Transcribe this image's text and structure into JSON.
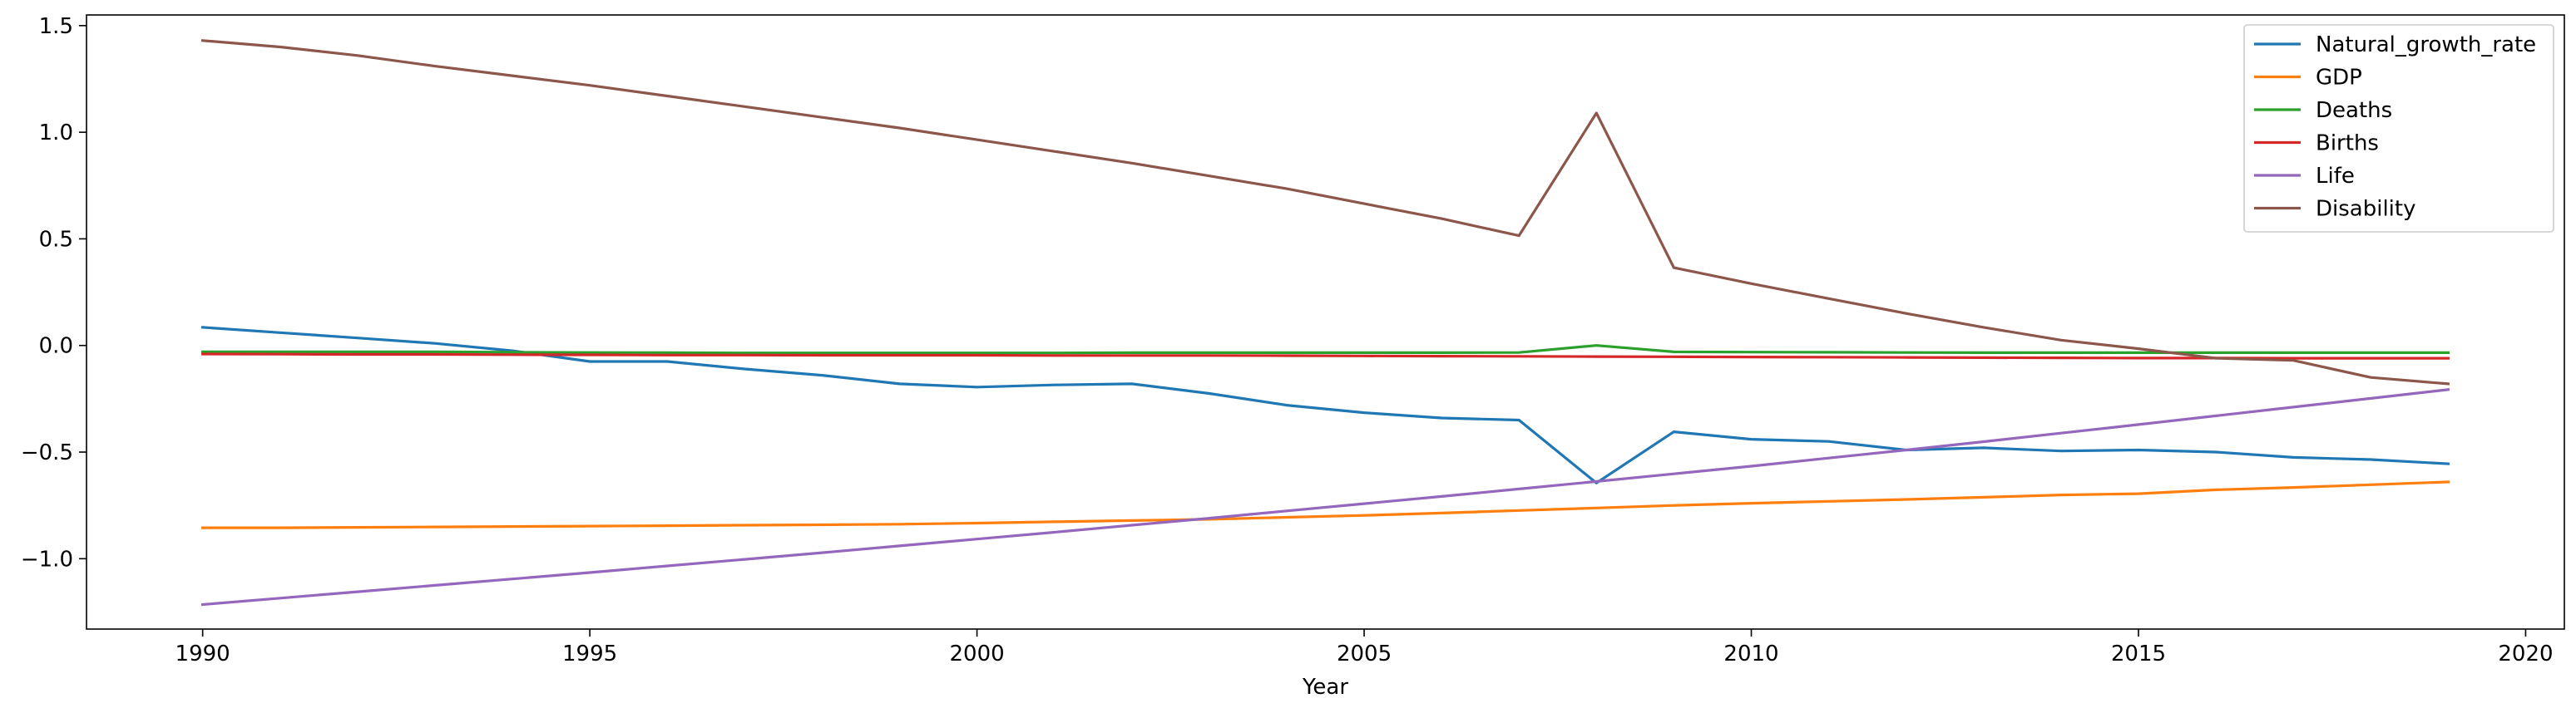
{
  "chart_data": {
    "type": "line",
    "xlabel": "Year",
    "ylabel": "",
    "xlim": [
      1988.5,
      2020.5
    ],
    "ylim": [
      -1.33,
      1.55
    ],
    "xticks": [
      1990,
      1995,
      2000,
      2005,
      2010,
      2015,
      2020
    ],
    "yticks": [
      -1.0,
      -0.5,
      0.0,
      0.5,
      1.0,
      1.5
    ],
    "ytick_labels": [
      "−1.0",
      "−0.5",
      "0.0",
      "0.5",
      "1.0",
      "1.5"
    ],
    "legend_position": "top-right",
    "grid": false,
    "x": [
      1990,
      1991,
      1992,
      1993,
      1994,
      1995,
      1996,
      1997,
      1998,
      1999,
      2000,
      2001,
      2002,
      2003,
      2004,
      2005,
      2006,
      2007,
      2008,
      2009,
      2010,
      2011,
      2012,
      2013,
      2014,
      2015,
      2016,
      2017,
      2018,
      2019
    ],
    "series": [
      {
        "name": "Natural_growth_rate",
        "color": "#1f77b4",
        "values": [
          0.085,
          0.06,
          0.035,
          0.01,
          -0.025,
          -0.075,
          -0.075,
          -0.11,
          -0.14,
          -0.18,
          -0.195,
          -0.185,
          -0.18,
          -0.225,
          -0.28,
          -0.315,
          -0.34,
          -0.35,
          -0.645,
          -0.405,
          -0.44,
          -0.45,
          -0.49,
          -0.48,
          -0.495,
          -0.49,
          -0.5,
          -0.525,
          -0.535,
          -0.555
        ]
      },
      {
        "name": "GDP",
        "color": "#ff7f0e",
        "values": [
          -0.855,
          -0.855,
          -0.853,
          -0.851,
          -0.849,
          -0.847,
          -0.845,
          -0.843,
          -0.841,
          -0.838,
          -0.833,
          -0.827,
          -0.821,
          -0.815,
          -0.806,
          -0.797,
          -0.786,
          -0.774,
          -0.762,
          -0.75,
          -0.74,
          -0.731,
          -0.722,
          -0.712,
          -0.701,
          -0.695,
          -0.677,
          -0.666,
          -0.653,
          -0.64
        ]
      },
      {
        "name": "Deaths",
        "color": "#2ca02c",
        "values": [
          -0.03,
          -0.03,
          -0.03,
          -0.03,
          -0.032,
          -0.033,
          -0.034,
          -0.035,
          -0.035,
          -0.035,
          -0.035,
          -0.035,
          -0.034,
          -0.034,
          -0.034,
          -0.034,
          -0.034,
          -0.033,
          0.0,
          -0.03,
          -0.031,
          -0.032,
          -0.033,
          -0.034,
          -0.034,
          -0.034,
          -0.034,
          -0.034,
          -0.034,
          -0.034
        ]
      },
      {
        "name": "Births",
        "color": "#d62728",
        "values": [
          -0.04,
          -0.041,
          -0.042,
          -0.042,
          -0.043,
          -0.044,
          -0.045,
          -0.045,
          -0.046,
          -0.046,
          -0.046,
          -0.047,
          -0.047,
          -0.047,
          -0.048,
          -0.049,
          -0.05,
          -0.051,
          -0.052,
          -0.053,
          -0.054,
          -0.055,
          -0.056,
          -0.057,
          -0.058,
          -0.059,
          -0.059,
          -0.06,
          -0.06,
          -0.06
        ]
      },
      {
        "name": "Life",
        "color": "#9467bd",
        "values": [
          -1.215,
          -1.185,
          -1.155,
          -1.125,
          -1.095,
          -1.065,
          -1.034,
          -1.003,
          -0.972,
          -0.94,
          -0.908,
          -0.876,
          -0.843,
          -0.81,
          -0.776,
          -0.742,
          -0.708,
          -0.673,
          -0.638,
          -0.602,
          -0.566,
          -0.528,
          -0.49,
          -0.451,
          -0.411,
          -0.371,
          -0.33,
          -0.289,
          -0.248,
          -0.207
        ]
      },
      {
        "name": "Disability",
        "color": "#8c564b",
        "values": [
          1.43,
          1.4,
          1.36,
          1.31,
          1.265,
          1.22,
          1.17,
          1.12,
          1.07,
          1.02,
          0.965,
          0.91,
          0.855,
          0.795,
          0.735,
          0.665,
          0.595,
          0.515,
          1.09,
          0.365,
          0.29,
          0.22,
          0.15,
          0.085,
          0.025,
          -0.015,
          -0.06,
          -0.07,
          -0.15,
          -0.18
        ]
      }
    ]
  }
}
